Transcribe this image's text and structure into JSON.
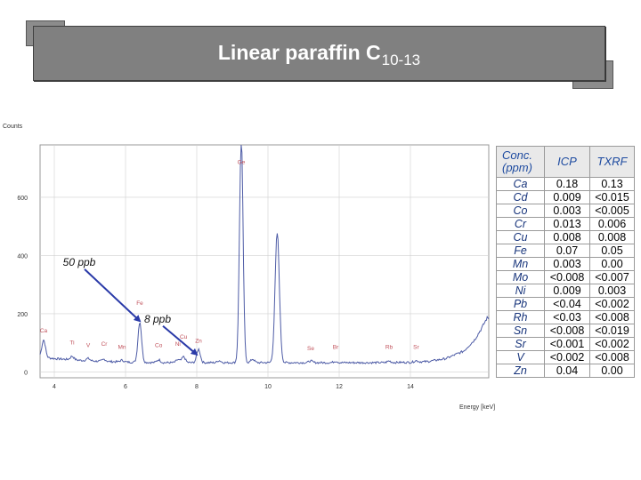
{
  "title": {
    "main": "Linear paraffin  C",
    "subscript": "10-13"
  },
  "chart_data": {
    "type": "line",
    "title": "",
    "ylabel": "Counts",
    "xlabel": "Energy [keV]",
    "xlim": [
      3.6,
      16.2
    ],
    "ylim": [
      -20,
      780
    ],
    "xticks": [
      4,
      6,
      8,
      10,
      12,
      14
    ],
    "yticks": [
      0,
      200,
      400,
      600
    ],
    "grid": true,
    "series": [
      {
        "baseline": [
          [
            3.6,
            52
          ],
          [
            4,
            46
          ],
          [
            5,
            38
          ],
          [
            6,
            34
          ],
          [
            7,
            32
          ],
          [
            8,
            32
          ],
          [
            9,
            32
          ],
          [
            10,
            32
          ],
          [
            11,
            32
          ],
          [
            12,
            32
          ],
          [
            13,
            32
          ],
          [
            14,
            33
          ],
          [
            14.5,
            36
          ],
          [
            15,
            46
          ],
          [
            15.5,
            72
          ],
          [
            15.8,
            110
          ],
          [
            16.0,
            150
          ],
          [
            16.15,
            185
          ]
        ],
        "peaks": [
          [
            3.7,
            60,
            0.05
          ],
          [
            4.5,
            12,
            0.05
          ],
          [
            4.95,
            8,
            0.05
          ],
          [
            5.4,
            7,
            0.05
          ],
          [
            5.9,
            6,
            0.05
          ],
          [
            6.4,
            140,
            0.05
          ],
          [
            6.93,
            10,
            0.05
          ],
          [
            7.47,
            10,
            0.05
          ],
          [
            7.63,
            20,
            0.05
          ],
          [
            8.05,
            46,
            0.05
          ],
          [
            8.63,
            7,
            0.05
          ],
          [
            9.25,
            770,
            0.05
          ],
          [
            9.57,
            12,
            0.05
          ],
          [
            10.26,
            445,
            0.06
          ],
          [
            11.2,
            6,
            0.05
          ],
          [
            11.9,
            5,
            0.05
          ],
          [
            13.4,
            5,
            0.05
          ],
          [
            14.16,
            5,
            0.05
          ]
        ]
      }
    ],
    "element_labels": [
      {
        "text": "Ca",
        "x": 3.7,
        "y": 135
      },
      {
        "text": "Ti",
        "x": 4.5,
        "y": 95
      },
      {
        "text": "V",
        "x": 4.95,
        "y": 85
      },
      {
        "text": "Cr",
        "x": 5.4,
        "y": 90
      },
      {
        "text": "Mn",
        "x": 5.9,
        "y": 80
      },
      {
        "text": "Fe",
        "x": 6.4,
        "y": 230
      },
      {
        "text": "Co",
        "x": 6.93,
        "y": 85
      },
      {
        "text": "Ni",
        "x": 7.47,
        "y": 90
      },
      {
        "text": "Cu",
        "x": 7.63,
        "y": 115
      },
      {
        "text": "Zn",
        "x": 8.05,
        "y": 100
      },
      {
        "text": "Ge",
        "x": 9.25,
        "y": 715
      },
      {
        "text": "Se",
        "x": 11.2,
        "y": 75
      },
      {
        "text": "Br",
        "x": 11.9,
        "y": 80
      },
      {
        "text": "Rb",
        "x": 13.4,
        "y": 80
      },
      {
        "text": "Sr",
        "x": 14.16,
        "y": 80
      }
    ],
    "annotations": [
      {
        "text": "50 ppb",
        "label_x": 4.7,
        "label_y": 365,
        "tip_x": 6.4,
        "tip_y": 175
      },
      {
        "text": "8 ppb",
        "label_x": 6.9,
        "label_y": 170,
        "tip_x": 8.0,
        "tip_y": 60
      }
    ]
  },
  "table": {
    "header": [
      "Conc. (ppm)",
      "ICP",
      "TXRF"
    ],
    "rows": [
      [
        "Ca",
        "0.18",
        "0.13"
      ],
      [
        "Cd",
        "0.009",
        "<0.015"
      ],
      [
        "Co",
        "0.003",
        "<0.005"
      ],
      [
        "Cr",
        "0.013",
        "0.006"
      ],
      [
        "Cu",
        "0.008",
        "0.008"
      ],
      [
        "Fe",
        "0.07",
        "0.05"
      ],
      [
        "Mn",
        "0.003",
        "0.00"
      ],
      [
        "Mo",
        "<0.008",
        "<0.007"
      ],
      [
        "Ni",
        "0.009",
        "0.003"
      ],
      [
        "Pb",
        "<0.04",
        "<0.002"
      ],
      [
        "Rh",
        "<0.03",
        "<0.008"
      ],
      [
        "Sn",
        "<0.008",
        "<0.019"
      ],
      [
        "Sr",
        "<0.001",
        "<0.002"
      ],
      [
        "V",
        "<0.002",
        "<0.008"
      ],
      [
        "Zn",
        "0.04",
        "0.00"
      ]
    ]
  },
  "colors": {
    "spectrum": "#4e5ca6",
    "arrow": "#2a3aa8",
    "title_bg": "#808080",
    "element_label": "#c0505a"
  }
}
